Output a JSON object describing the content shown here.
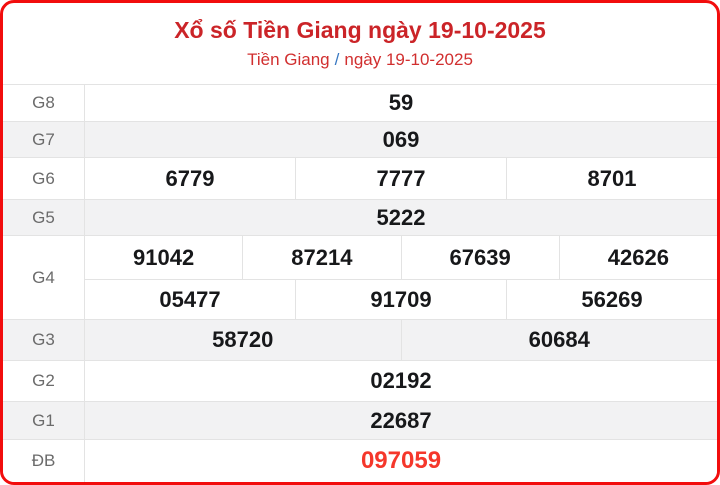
{
  "header": {
    "title": "Xổ số Tiền Giang ngày 19-10-2025",
    "breadcrumb": {
      "province": "Tiền Giang",
      "separator": "/",
      "date": "ngày 19-10-2025"
    }
  },
  "colors": {
    "card_border_red": "#f20d0d",
    "title_red": "#cb2428",
    "breadcrumb_red": "#d12f2f",
    "separator_blue": "#3878c2",
    "special_prize_red": "#f5372b",
    "row_alt_bg": "#f2f2f3",
    "divider_gray": "#e3e3e3",
    "label_gray": "#6b6b6b",
    "number_black": "#17181a"
  },
  "table": {
    "rows": [
      {
        "label": "G8",
        "values": [
          "59"
        ]
      },
      {
        "label": "G7",
        "values": [
          "069"
        ]
      },
      {
        "label": "G6",
        "values": [
          "6779",
          "7777",
          "8701"
        ]
      },
      {
        "label": "G5",
        "values": [
          "5222"
        ]
      },
      {
        "label": "G4",
        "line1": [
          "91042",
          "87214",
          "67639",
          "42626"
        ],
        "line2": [
          "05477",
          "91709",
          "56269"
        ]
      },
      {
        "label": "G3",
        "values": [
          "58720",
          "60684"
        ]
      },
      {
        "label": "G2",
        "values": [
          "02192"
        ]
      },
      {
        "label": "G1",
        "values": [
          "22687"
        ]
      },
      {
        "label": "ĐB",
        "values": [
          "097059"
        ]
      }
    ]
  }
}
